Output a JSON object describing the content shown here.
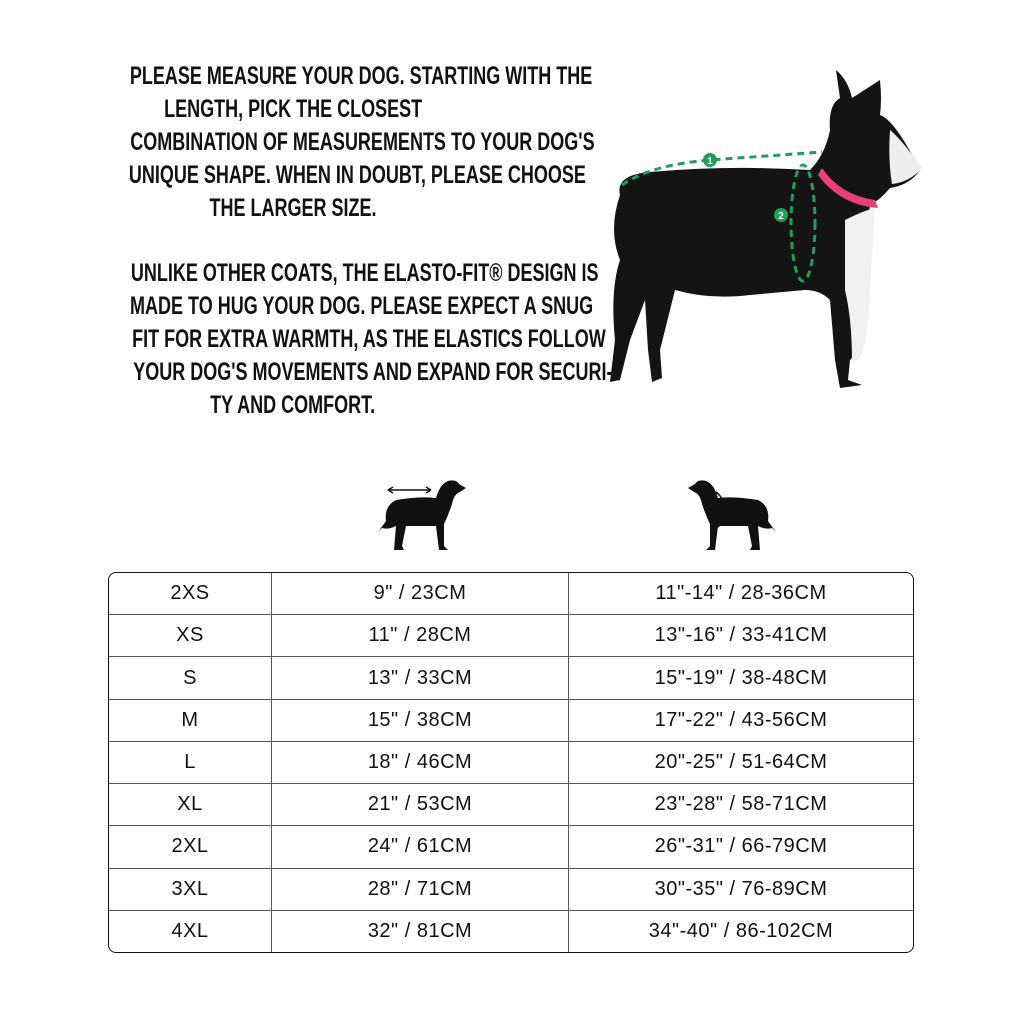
{
  "intro": {
    "paragraph1": [
      "PLEASE MEASURE YOUR DOG. STARTING WITH THE",
      "LENGTH, PICK THE CLOSEST",
      "COMBINATION OF MEASUREMENTS TO YOUR DOG'S",
      "UNIQUE SHAPE. WHEN IN DOUBT, PLEASE CHOOSE",
      "THE LARGER SIZE."
    ],
    "paragraph2": [
      "UNLIKE OTHER COATS, THE ELASTO-FIT® DESIGN IS",
      "MADE TO HUG YOUR DOG. PLEASE EXPECT A SNUG",
      "FIT FOR EXTRA WARMTH, AS THE ELASTICS FOLLOW",
      "YOUR DOG'S MOVEMENTS AND EXPAND FOR SECURI-",
      "TY AND COMFORT."
    ]
  },
  "photo": {
    "markers": [
      "1",
      "2"
    ],
    "accent": "#1fa05a",
    "collar": "#e8407a"
  },
  "icons": [
    "dog-length-icon",
    "dog-chest-icon"
  ],
  "table": {
    "rows": [
      [
        "2XS",
        "9\" / 23CM",
        "11\"-14\" / 28-36CM"
      ],
      [
        "XS",
        "11\" / 28CM",
        "13\"-16\" / 33-41CM"
      ],
      [
        "S",
        "13\" / 33CM",
        "15\"-19\" / 38-48CM"
      ],
      [
        "M",
        "15\" / 38CM",
        "17\"-22\" / 43-56CM"
      ],
      [
        "L",
        "18\" / 46CM",
        "20\"-25\" / 51-64CM"
      ],
      [
        "XL",
        "21\" / 53CM",
        "23\"-28\" / 58-71CM"
      ],
      [
        "2XL",
        "24\" / 61CM",
        "26\"-31\" / 66-79CM"
      ],
      [
        "3XL",
        "28\" / 71CM",
        "30\"-35\" / 76-89CM"
      ],
      [
        "4XL",
        "32\" / 81CM",
        "34\"-40\" / 86-102CM"
      ]
    ]
  }
}
